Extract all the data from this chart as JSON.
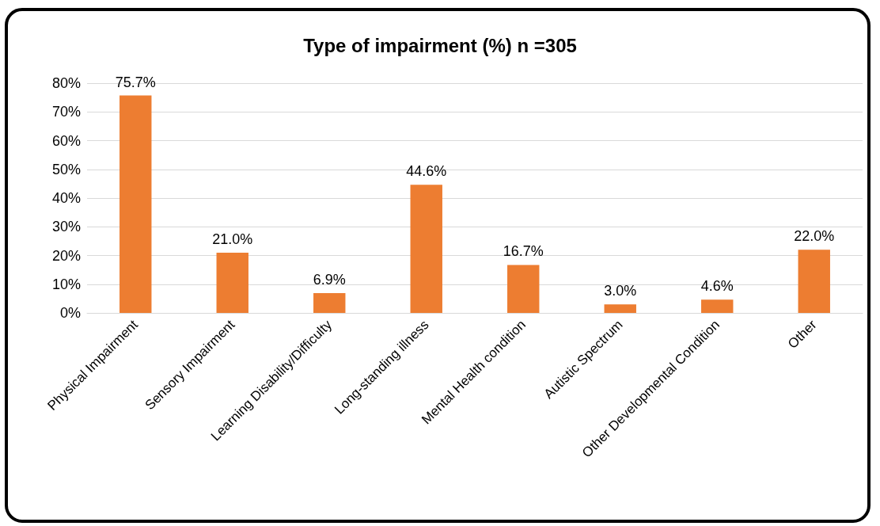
{
  "chart_data": {
    "type": "bar",
    "title": "Type of impairment (%) n =305",
    "categories": [
      "Physical Impairment",
      "Sensory Impairment",
      "Learning Disability/Difficulty",
      "Long-standing illness",
      "Mental Health condition",
      "Autistic Spectrum",
      "Other Developmental Condition",
      "Other"
    ],
    "values": [
      75.7,
      21.0,
      6.9,
      44.6,
      16.7,
      3.0,
      4.6,
      22.0
    ],
    "value_labels": [
      "75.7%",
      "21.0%",
      "6.9%",
      "44.6%",
      "16.7%",
      "3.0%",
      "4.6%",
      "22.0%"
    ],
    "color": "#ed7d31",
    "ylim": [
      0,
      80
    ],
    "yticks": [
      {
        "value": 0,
        "label": "0%"
      },
      {
        "value": 10,
        "label": "10%"
      },
      {
        "value": 20,
        "label": "20%"
      },
      {
        "value": 30,
        "label": "30%"
      },
      {
        "value": 40,
        "label": "40%"
      },
      {
        "value": 50,
        "label": "50%"
      },
      {
        "value": 60,
        "label": "60%"
      },
      {
        "value": 70,
        "label": "70%"
      },
      {
        "value": 80,
        "label": "80%"
      }
    ],
    "grid": "y"
  }
}
